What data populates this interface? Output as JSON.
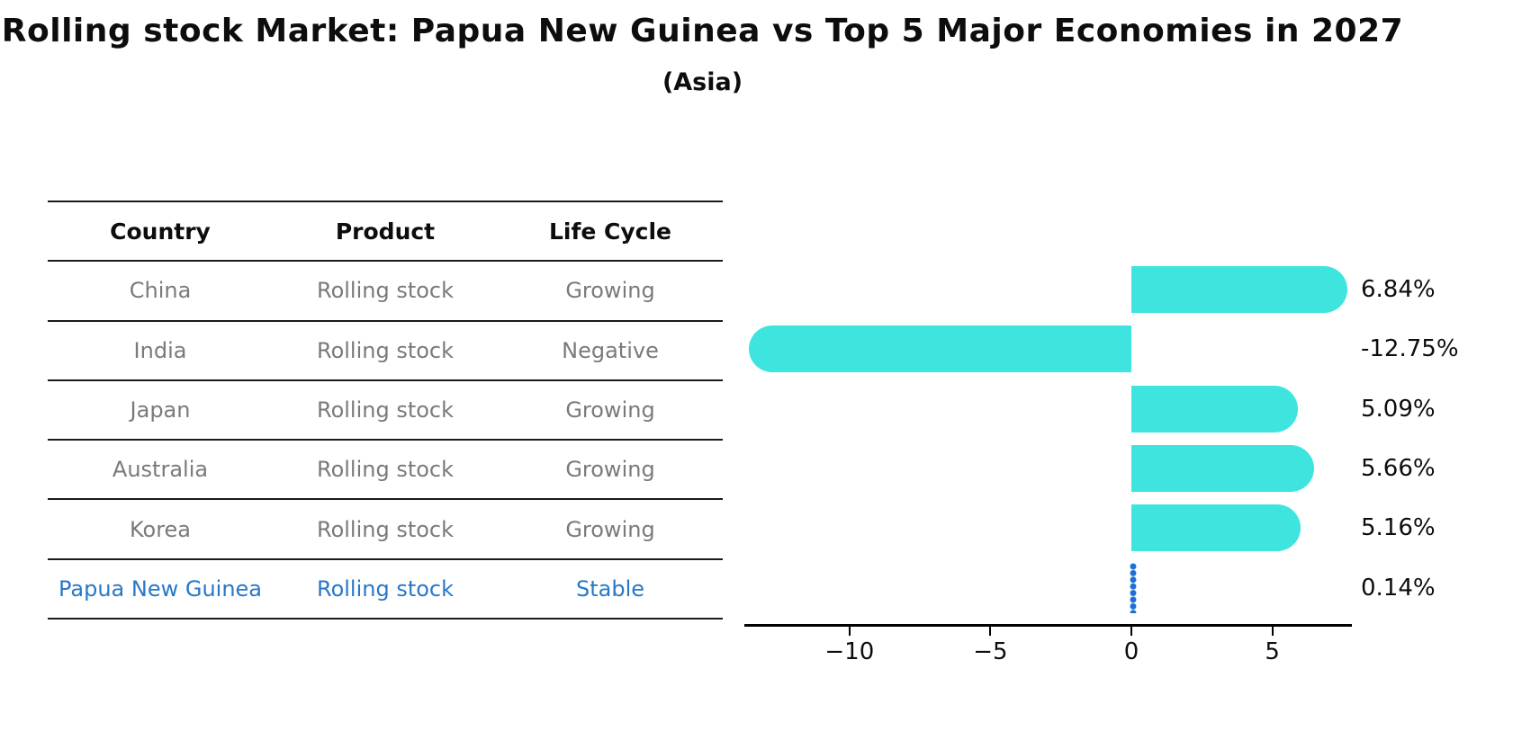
{
  "title": "Rolling stock Market: Papua New Guinea vs Top 5 Major Economies in 2027",
  "subtitle": "(Asia)",
  "table": {
    "headers": [
      "Country",
      "Product",
      "Life Cycle"
    ],
    "rows": [
      {
        "country": "China",
        "product": "Rolling stock",
        "life_cycle": "Growing",
        "highlight": false
      },
      {
        "country": "India",
        "product": "Rolling stock",
        "life_cycle": "Negative",
        "highlight": false
      },
      {
        "country": "Japan",
        "product": "Rolling stock",
        "life_cycle": "Growing",
        "highlight": false
      },
      {
        "country": "Australia",
        "product": "Rolling stock",
        "life_cycle": "Growing",
        "highlight": false
      },
      {
        "country": "Korea",
        "product": "Rolling stock",
        "life_cycle": "Growing",
        "highlight": false
      },
      {
        "country": "Papua New Guinea",
        "product": "Rolling stock",
        "life_cycle": "Stable",
        "highlight": true
      }
    ]
  },
  "chart_data": {
    "type": "bar",
    "orientation": "horizontal",
    "title": "Rolling stock Market: Papua New Guinea vs Top 5 Major Economies in 2027",
    "subtitle": "(Asia)",
    "categories": [
      "China",
      "India",
      "Japan",
      "Australia",
      "Korea",
      "Papua New Guinea"
    ],
    "values": [
      6.84,
      -12.75,
      5.09,
      5.66,
      5.16,
      0.14
    ],
    "value_labels": [
      "6.84%",
      "-12.75%",
      "5.09%",
      "5.66%",
      "5.16%",
      "0.14%"
    ],
    "xlabel": "",
    "ylabel": "",
    "xlim": [
      -13.73,
      7.82
    ],
    "xticks": [
      -10,
      -5,
      0,
      5
    ],
    "xtick_labels": [
      "−10",
      "−5",
      "0",
      "5"
    ],
    "grid": false,
    "legend": false,
    "bar_color": "#3ee5df",
    "highlight_index": 5,
    "highlight_color": "#1e6fd4",
    "highlight_text_color": "#2878c8"
  }
}
